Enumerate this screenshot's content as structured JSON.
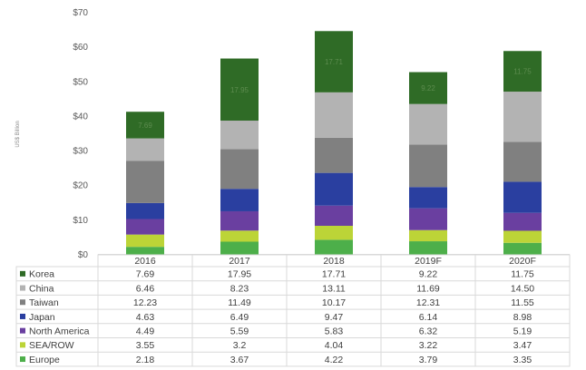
{
  "chart_data": {
    "type": "bar",
    "stacked": true,
    "categories": [
      "2016",
      "2017",
      "2018",
      "2019F",
      "2020F"
    ],
    "ylabel": "US$ Billion",
    "ylim": [
      0,
      70
    ],
    "yticks": [
      "$0",
      "$10",
      "$20",
      "$30",
      "$40",
      "$50",
      "$60",
      "$70"
    ],
    "legend": "data-table",
    "series": [
      {
        "name": "Europe",
        "color": "#4daf4a",
        "values": [
          2.18,
          3.67,
          4.22,
          3.79,
          3.35
        ],
        "labels": [
          "2.18",
          "3.67",
          "4.22",
          "3.79",
          "3.35"
        ]
      },
      {
        "name": "SEA/ROW",
        "color": "#bcd437",
        "values": [
          3.55,
          3.2,
          4.04,
          3.22,
          3.47
        ],
        "labels": [
          "3.55",
          "3.2",
          "4.04",
          "3.22",
          "3.47"
        ]
      },
      {
        "name": "North America",
        "color": "#6a3fa0",
        "values": [
          4.49,
          5.59,
          5.83,
          6.32,
          5.19
        ],
        "labels": [
          "4.49",
          "5.59",
          "5.83",
          "6.32",
          "5.19"
        ]
      },
      {
        "name": "Japan",
        "color": "#2a3fa0",
        "values": [
          4.63,
          6.49,
          9.47,
          6.14,
          8.98
        ],
        "labels": [
          "4.63",
          "6.49",
          "9.47",
          "6.14",
          "8.98"
        ]
      },
      {
        "name": "Taiwan",
        "color": "#808080",
        "values": [
          12.23,
          11.49,
          10.17,
          12.31,
          11.55
        ],
        "labels": [
          "12.23",
          "11.49",
          "10.17",
          "12.31",
          "11.55"
        ]
      },
      {
        "name": "China",
        "color": "#b3b3b3",
        "values": [
          6.46,
          8.23,
          13.11,
          11.69,
          14.5
        ],
        "labels": [
          "6.46",
          "8.23",
          "13.11",
          "11.69",
          "14.50"
        ]
      },
      {
        "name": "Korea",
        "color": "#2f6b26",
        "values": [
          7.69,
          17.95,
          17.71,
          9.22,
          11.75
        ],
        "labels": [
          "7.69",
          "17.95",
          "17.71",
          "9.22",
          "11.75"
        ]
      }
    ],
    "table_order": [
      "Korea",
      "China",
      "Taiwan",
      "Japan",
      "North America",
      "SEA/ROW",
      "Europe"
    ]
  }
}
